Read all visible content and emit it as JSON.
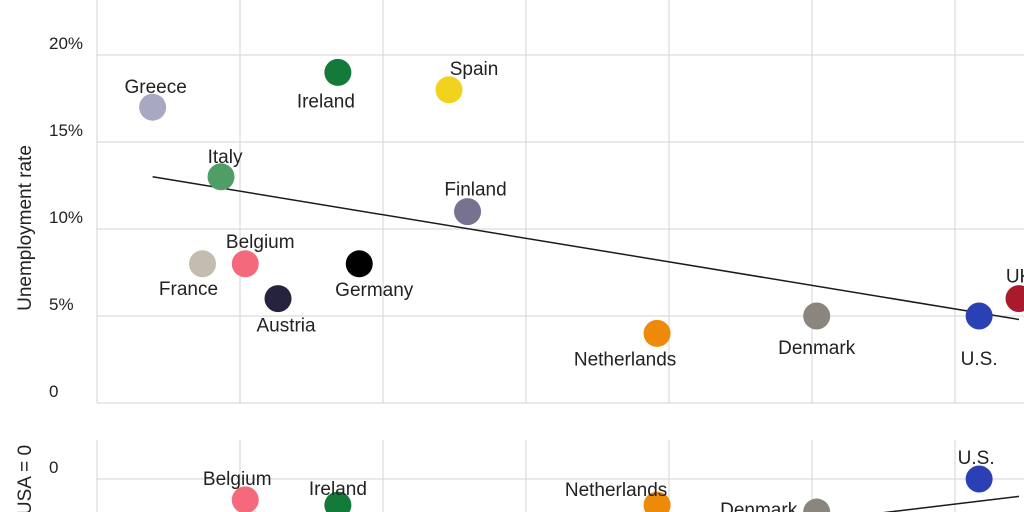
{
  "chart_data": [
    {
      "type": "scatter",
      "ylabel": "Unemployment rate",
      "ylim": [
        0,
        23
      ],
      "yticks": [
        {
          "value": 0,
          "label": "0"
        },
        {
          "value": 5,
          "label": "5%"
        },
        {
          "value": 10,
          "label": "10%"
        },
        {
          "value": 15,
          "label": "15%"
        },
        {
          "value": 20,
          "label": "20%"
        }
      ],
      "grid": true,
      "points": [
        {
          "label": "Greece",
          "x": 0.25,
          "y": 17,
          "color": "#a9a8c3"
        },
        {
          "label": "Ireland",
          "x": 1.55,
          "y": 19,
          "color": "#147a3a"
        },
        {
          "label": "Spain",
          "x": 2.33,
          "y": 18,
          "color": "#f2d21c"
        },
        {
          "label": "Italy",
          "x": 0.73,
          "y": 13,
          "color": "#4f9e68"
        },
        {
          "label": "Finland",
          "x": 2.46,
          "y": 11,
          "color": "#77728f"
        },
        {
          "label": "Belgium",
          "x": 0.9,
          "y": 8,
          "color": "#f46a7c"
        },
        {
          "label": "France",
          "x": 0.6,
          "y": 8,
          "color": "#c4bcae"
        },
        {
          "label": "Germany",
          "x": 1.7,
          "y": 8,
          "color": "#000000"
        },
        {
          "label": "Austria",
          "x": 1.13,
          "y": 6,
          "color": "#26233e"
        },
        {
          "label": "Netherlands",
          "x": 3.79,
          "y": 4,
          "color": "#ee8a0a"
        },
        {
          "label": "Denmark",
          "x": 4.91,
          "y": 5,
          "color": "#8b867d"
        },
        {
          "label": "U.S.",
          "x": 6.05,
          "y": 5,
          "color": "#2c40b6"
        },
        {
          "label": "UK",
          "x": 6.33,
          "y": 6,
          "color": "#a81a2c"
        }
      ],
      "trendline": {
        "from": [
          0.25,
          13
        ],
        "to": [
          6.33,
          4.8
        ]
      }
    },
    {
      "type": "scatter",
      "ylabel": "USA = 0",
      "yticks": [
        {
          "value": 0,
          "label": "0"
        }
      ],
      "grid": true,
      "points": [
        {
          "label": "Belgium",
          "x": 0.9,
          "y": -1.2,
          "color": "#f46a7c"
        },
        {
          "label": "Ireland",
          "x": 1.55,
          "y": -1.5,
          "color": "#147a3a"
        },
        {
          "label": "Netherlands",
          "x": 3.79,
          "y": -1.5,
          "color": "#ee8a0a"
        },
        {
          "label": "Denmark",
          "x": 4.91,
          "y": -1.9,
          "color": "#8b867d"
        },
        {
          "label": "U.S.",
          "x": 6.05,
          "y": 0,
          "color": "#2c40b6"
        }
      ],
      "trendline": {
        "from": [
          4.5,
          -2.8
        ],
        "to": [
          6.33,
          -1.0
        ]
      }
    }
  ]
}
